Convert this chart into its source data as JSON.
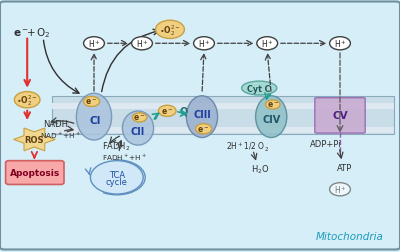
{
  "bg_color": "#d6eef8",
  "membrane_color": "#c8dde8",
  "membrane_stripe_color": "#dde8f0",
  "title_text": "Mitochondria",
  "title_color": "#1a9bba",
  "ci_color": "#aac4de",
  "ci_label": "CI",
  "cii_color": "#aac4de",
  "cii_label": "CII",
  "ciii_color": "#9ab0d0",
  "ciii_label": "CIII",
  "civ_color": "#90c0c8",
  "civ_label": "CIV",
  "cv_color": "#c8a8d0",
  "cv_label": "CV",
  "cytc_color": "#a0d8d0",
  "cytc_label": "Cyt C",
  "electron_color": "#f0d080",
  "electron_border": "#c8a040",
  "ros_color": "#f0d890",
  "ros_border": "#c8a040",
  "apoptosis_color": "#f8a8a8",
  "tca_color": "#d0e8f8",
  "superoxide_color": "#f0d080",
  "arrow_color": "#404040",
  "red_arrow_color": "#e03030",
  "teal_arrow_color": "#20a090"
}
